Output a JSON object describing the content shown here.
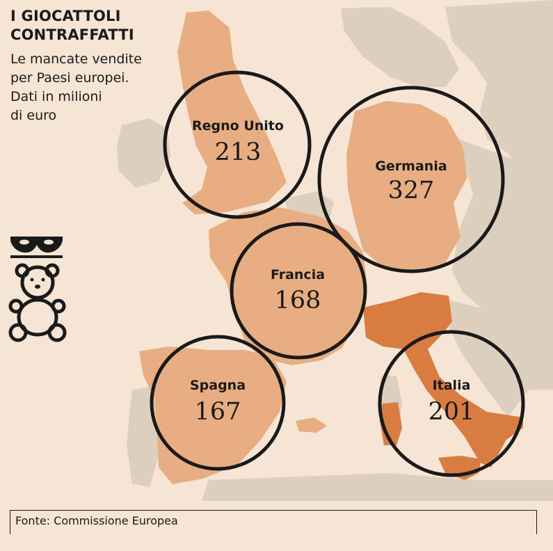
{
  "title_lines": [
    "I GIOCATTOLI",
    "CONTRAFFATTI"
  ],
  "subtitle_lines": [
    "Le mancate vendite",
    "per Paesi europei.",
    "Dati in milioni",
    "di euro"
  ],
  "countries": [
    {
      "name": "Regno Unito",
      "value": "213"
    },
    {
      "name": "Germania",
      "value": "327"
    },
    {
      "name": "Francia",
      "value": "168"
    },
    {
      "name": "Spagna",
      "value": "167"
    },
    {
      "name": "Italia",
      "value": "201"
    }
  ],
  "source": "Fonte: Commissione Europea",
  "icons": [
    "mask-icon",
    "teddy-bear-icon"
  ],
  "colors": {
    "background": "#f6e5d4",
    "other_land": "#dccfbe",
    "highlighted_land": "#e8ae82",
    "italy": "#d97c42",
    "circle_stroke": "#1a1a1a"
  }
}
